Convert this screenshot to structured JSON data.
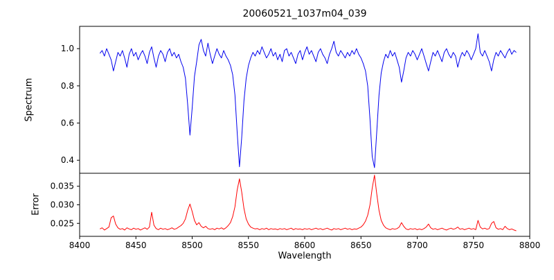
{
  "chart_data": {
    "type": "line",
    "title": "20060521_1037m04_039",
    "xlabel": "Wavelength",
    "xlim": [
      8400,
      8800
    ],
    "x_ticks": [
      "8400",
      "8450",
      "8500",
      "8550",
      "8600",
      "8650",
      "8700",
      "8750",
      "8800"
    ],
    "x_start": 8418,
    "x_step": 2,
    "grid": false,
    "legend": "none",
    "absorption_line_centers": [
      8498,
      8542,
      8662
    ],
    "panels": [
      {
        "name": "spectrum",
        "ylabel": "Spectrum",
        "color": "#0000ee",
        "ylim": [
          0.33,
          1.12
        ],
        "y_ticks": [
          "0.4",
          "0.6",
          "0.8",
          "1.0"
        ],
        "values": [
          0.975,
          0.99,
          0.96,
          1.0,
          0.97,
          0.94,
          0.88,
          0.93,
          0.98,
          0.96,
          0.99,
          0.95,
          0.9,
          0.97,
          1.0,
          0.96,
          0.98,
          0.94,
          0.97,
          0.99,
          0.96,
          0.92,
          0.98,
          1.01,
          0.95,
          0.9,
          0.96,
          0.99,
          0.97,
          0.93,
          0.98,
          1.0,
          0.96,
          0.98,
          0.95,
          0.97,
          0.93,
          0.9,
          0.84,
          0.7,
          0.535,
          0.68,
          0.85,
          0.93,
          1.02,
          1.05,
          0.99,
          0.96,
          1.03,
          0.97,
          0.92,
          0.96,
          1.0,
          0.97,
          0.95,
          0.99,
          0.96,
          0.94,
          0.91,
          0.86,
          0.75,
          0.55,
          0.365,
          0.52,
          0.72,
          0.84,
          0.91,
          0.95,
          0.98,
          0.96,
          0.99,
          0.97,
          1.01,
          0.98,
          0.95,
          0.97,
          1.0,
          0.96,
          0.98,
          0.94,
          0.97,
          0.93,
          0.99,
          1.0,
          0.96,
          0.98,
          0.95,
          0.92,
          0.97,
          0.99,
          0.94,
          0.98,
          1.01,
          0.97,
          0.99,
          0.96,
          0.93,
          0.98,
          1.0,
          0.97,
          0.95,
          0.92,
          0.97,
          1.0,
          1.04,
          0.98,
          0.96,
          0.99,
          0.97,
          0.95,
          0.98,
          0.96,
          0.99,
          0.97,
          1.0,
          0.97,
          0.95,
          0.92,
          0.88,
          0.8,
          0.62,
          0.42,
          0.36,
          0.55,
          0.75,
          0.87,
          0.93,
          0.97,
          0.95,
          0.99,
          0.96,
          0.98,
          0.94,
          0.9,
          0.82,
          0.88,
          0.95,
          0.98,
          0.96,
          0.99,
          0.97,
          0.94,
          0.97,
          1.0,
          0.96,
          0.92,
          0.88,
          0.93,
          0.98,
          0.96,
          0.99,
          0.96,
          0.93,
          0.98,
          1.0,
          0.97,
          0.95,
          0.98,
          0.96,
          0.9,
          0.95,
          0.98,
          0.96,
          0.99,
          0.97,
          0.94,
          0.97,
          1.0,
          1.08,
          0.98,
          0.96,
          0.99,
          0.96,
          0.93,
          0.88,
          0.94,
          0.98,
          0.96,
          0.99,
          0.97,
          0.95,
          0.98,
          1.0,
          0.97,
          0.99,
          0.98
        ]
      },
      {
        "name": "error",
        "ylabel": "Error",
        "color": "#ff0000",
        "ylim": [
          0.0215,
          0.0385
        ],
        "y_ticks": [
          "0.025",
          "0.030",
          "0.035"
        ],
        "values": [
          0.0235,
          0.0238,
          0.0232,
          0.0236,
          0.024,
          0.0265,
          0.027,
          0.0248,
          0.0238,
          0.0234,
          0.0236,
          0.0232,
          0.0238,
          0.0235,
          0.0233,
          0.0237,
          0.0234,
          0.0236,
          0.0232,
          0.0235,
          0.0238,
          0.0234,
          0.024,
          0.028,
          0.0245,
          0.0236,
          0.0233,
          0.0237,
          0.0234,
          0.0236,
          0.0233,
          0.0235,
          0.0238,
          0.0234,
          0.0236,
          0.024,
          0.0244,
          0.025,
          0.0262,
          0.0285,
          0.0302,
          0.0282,
          0.0258,
          0.0246,
          0.0252,
          0.0242,
          0.0238,
          0.0242,
          0.0236,
          0.0234,
          0.0236,
          0.0233,
          0.0237,
          0.0235,
          0.0238,
          0.0234,
          0.0238,
          0.0244,
          0.0252,
          0.0268,
          0.0295,
          0.034,
          0.037,
          0.0335,
          0.029,
          0.0262,
          0.0248,
          0.024,
          0.0237,
          0.0235,
          0.0236,
          0.0233,
          0.0236,
          0.0234,
          0.0237,
          0.0233,
          0.0236,
          0.0234,
          0.0235,
          0.0233,
          0.0236,
          0.0234,
          0.0236,
          0.0233,
          0.0235,
          0.0237,
          0.0233,
          0.0236,
          0.0234,
          0.0235,
          0.0233,
          0.0236,
          0.0234,
          0.0236,
          0.0233,
          0.0235,
          0.0237,
          0.0234,
          0.0236,
          0.0233,
          0.0235,
          0.0237,
          0.0234,
          0.0232,
          0.0236,
          0.0234,
          0.0236,
          0.0233,
          0.0235,
          0.0237,
          0.0234,
          0.0236,
          0.0233,
          0.0235,
          0.0234,
          0.0237,
          0.024,
          0.0246,
          0.0256,
          0.0272,
          0.03,
          0.0345,
          0.038,
          0.033,
          0.0285,
          0.0258,
          0.0245,
          0.0238,
          0.0235,
          0.0233,
          0.0236,
          0.0234,
          0.0236,
          0.024,
          0.0252,
          0.0242,
          0.0235,
          0.0233,
          0.0236,
          0.0234,
          0.0236,
          0.0233,
          0.0235,
          0.0233,
          0.0236,
          0.024,
          0.0248,
          0.0238,
          0.0234,
          0.0236,
          0.0233,
          0.0235,
          0.0237,
          0.0234,
          0.0232,
          0.0235,
          0.0237,
          0.0234,
          0.0236,
          0.024,
          0.0234,
          0.0236,
          0.0233,
          0.0235,
          0.0237,
          0.0234,
          0.0236,
          0.0233,
          0.0258,
          0.024,
          0.0235,
          0.0237,
          0.0234,
          0.0236,
          0.025,
          0.0255,
          0.0238,
          0.0234,
          0.0236,
          0.0233,
          0.0242,
          0.0236,
          0.0233,
          0.0235,
          0.0232,
          0.023
        ]
      }
    ]
  }
}
